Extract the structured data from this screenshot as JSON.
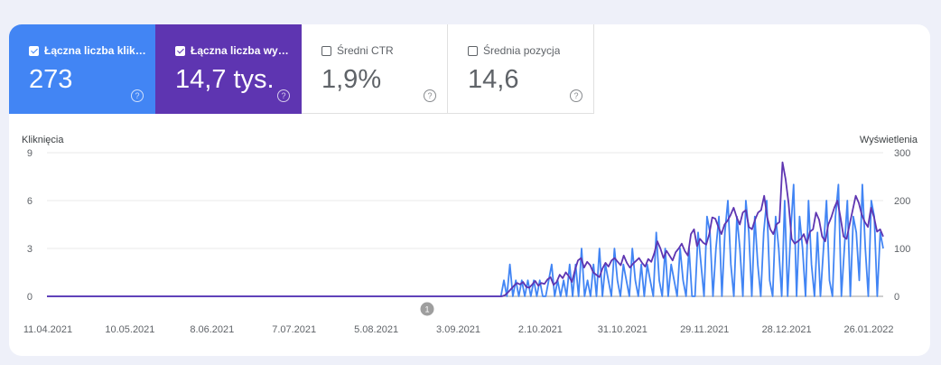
{
  "metrics": [
    {
      "label": "Łączna liczba klik…",
      "value": "273",
      "checked": true,
      "color": "#4285f4"
    },
    {
      "label": "Łączna liczba wy…",
      "value": "14,7 tys.",
      "checked": true,
      "color": "#5e35b1"
    },
    {
      "label": "Średni CTR",
      "value": "1,9%",
      "checked": false,
      "color": "#ffffff"
    },
    {
      "label": "Średnia pozycja",
      "value": "14,6",
      "checked": false,
      "color": "#ffffff"
    }
  ],
  "help_glyph": "?",
  "chart_data": {
    "type": "line",
    "y_left_label": "Kliknięcia",
    "y_right_label": "Wyświetlenia",
    "y_left_ticks": [
      "0",
      "3",
      "6",
      "9"
    ],
    "y_left_range": [
      0,
      9
    ],
    "y_right_ticks": [
      "0",
      "100",
      "200",
      "300"
    ],
    "y_right_range": [
      0,
      300
    ],
    "x_ticks": [
      "11.04.2021",
      "10.05.2021",
      "8.06.2021",
      "7.07.2021",
      "5.08.2021",
      "3.09.2021",
      "2.10.2021",
      "31.10.2021",
      "29.11.2021",
      "28.12.2021",
      "26.01.2022"
    ],
    "annotation": "1",
    "grid": true,
    "series": [
      {
        "name": "Łączna liczba kliknięć",
        "axis": "left",
        "color": "#4285f4",
        "values": [
          0,
          0,
          0,
          0,
          0,
          0,
          0,
          0,
          0,
          0,
          0,
          0,
          0,
          0,
          0,
          0,
          0,
          0,
          0,
          0,
          0,
          0,
          0,
          0,
          0,
          0,
          0,
          0,
          0,
          0,
          0,
          0,
          0,
          0,
          0,
          0,
          0,
          0,
          0,
          0,
          0,
          0,
          0,
          0,
          0,
          0,
          0,
          0,
          0,
          0,
          0,
          0,
          0,
          0,
          0,
          0,
          0,
          0,
          0,
          0,
          0,
          0,
          0,
          0,
          0,
          0,
          0,
          0,
          0,
          0,
          0,
          0,
          0,
          0,
          0,
          0,
          0,
          0,
          0,
          0,
          0,
          0,
          0,
          0,
          0,
          0,
          0,
          0,
          0,
          0,
          0,
          0,
          0,
          0,
          0,
          0,
          0,
          0,
          0,
          0,
          0,
          0,
          0,
          0,
          0,
          0,
          0,
          0,
          0,
          0,
          0,
          0,
          0,
          0,
          0,
          0,
          0,
          0,
          0,
          0,
          0,
          0,
          0,
          0,
          0,
          0,
          0,
          0,
          0,
          0,
          0,
          0,
          0,
          0,
          0,
          0,
          0,
          0,
          0,
          0,
          0,
          0,
          0,
          0,
          0,
          0,
          0,
          0,
          0,
          0,
          0,
          0,
          0,
          1,
          0,
          2,
          0,
          1,
          0,
          1,
          0,
          1,
          0,
          1,
          0,
          1,
          0,
          0,
          1,
          2,
          0,
          1,
          0,
          1,
          0,
          2,
          0,
          2,
          0,
          3,
          0,
          1,
          0,
          2,
          0,
          3,
          0,
          2,
          1,
          0,
          3,
          1,
          0,
          2,
          1,
          0,
          3,
          1,
          0,
          2,
          0,
          2,
          1,
          0,
          4,
          1,
          0,
          3,
          0,
          2,
          1,
          0,
          3,
          1,
          0,
          3,
          0,
          0,
          4,
          2,
          0,
          5,
          4,
          0,
          3,
          5,
          0,
          4,
          6,
          2,
          0,
          5,
          3,
          0,
          6,
          4,
          0,
          5,
          2,
          0,
          4,
          6,
          1,
          0,
          5,
          3,
          0,
          6,
          0,
          4,
          7,
          0,
          5,
          3,
          0,
          6,
          2,
          0,
          4,
          0,
          3,
          6,
          1,
          0,
          5,
          7,
          0,
          3,
          6,
          0,
          5,
          4,
          1,
          7,
          3,
          0,
          6,
          5,
          0,
          4,
          3
        ]
      },
      {
        "name": "Łączna liczba wyświetleń",
        "axis": "right",
        "color": "#5e35b1",
        "values": [
          0,
          0,
          0,
          0,
          0,
          0,
          0,
          0,
          0,
          0,
          0,
          0,
          0,
          0,
          0,
          0,
          0,
          0,
          0,
          0,
          0,
          0,
          0,
          0,
          0,
          0,
          0,
          0,
          0,
          0,
          0,
          0,
          0,
          0,
          0,
          0,
          0,
          0,
          0,
          0,
          0,
          0,
          0,
          0,
          0,
          0,
          0,
          0,
          0,
          0,
          0,
          0,
          0,
          0,
          0,
          0,
          0,
          0,
          0,
          0,
          0,
          0,
          0,
          0,
          0,
          0,
          0,
          0,
          0,
          0,
          0,
          0,
          0,
          0,
          0,
          0,
          0,
          0,
          0,
          0,
          0,
          0,
          0,
          0,
          0,
          0,
          0,
          0,
          0,
          0,
          0,
          0,
          0,
          0,
          0,
          0,
          0,
          0,
          0,
          0,
          0,
          0,
          0,
          0,
          0,
          0,
          0,
          0,
          0,
          0,
          0,
          0,
          0,
          0,
          0,
          0,
          0,
          0,
          0,
          0,
          0,
          0,
          0,
          0,
          0,
          0,
          0,
          0,
          0,
          0,
          0,
          0,
          0,
          0,
          0,
          0,
          0,
          0,
          0,
          0,
          0,
          0,
          0,
          0,
          0,
          0,
          0,
          0,
          0,
          0,
          2,
          8,
          15,
          22,
          28,
          25,
          30,
          20,
          18,
          25,
          32,
          22,
          28,
          26,
          35,
          40,
          24,
          30,
          45,
          38,
          50,
          42,
          30,
          55,
          75,
          80,
          60,
          72,
          65,
          50,
          45,
          40,
          58,
          70,
          62,
          75,
          80,
          72,
          65,
          85,
          70,
          60,
          68,
          74,
          80,
          70,
          62,
          78,
          72,
          90,
          115,
          100,
          80,
          95,
          85,
          75,
          92,
          100,
          110,
          95,
          85,
          130,
          140,
          105,
          120,
          112,
          108,
          130,
          165,
          162,
          145,
          130,
          150,
          158,
          170,
          185,
          165,
          150,
          175,
          180,
          145,
          140,
          160,
          175,
          180,
          210,
          165,
          140,
          130,
          150,
          155,
          280,
          245,
          195,
          120,
          110,
          115,
          120,
          130,
          110,
          135,
          140,
          175,
          160,
          125,
          115,
          150,
          165,
          185,
          200,
          165,
          125,
          120,
          150,
          180,
          210,
          195,
          170,
          155,
          145,
          185,
          165,
          135,
          140,
          125
        ]
      }
    ]
  }
}
